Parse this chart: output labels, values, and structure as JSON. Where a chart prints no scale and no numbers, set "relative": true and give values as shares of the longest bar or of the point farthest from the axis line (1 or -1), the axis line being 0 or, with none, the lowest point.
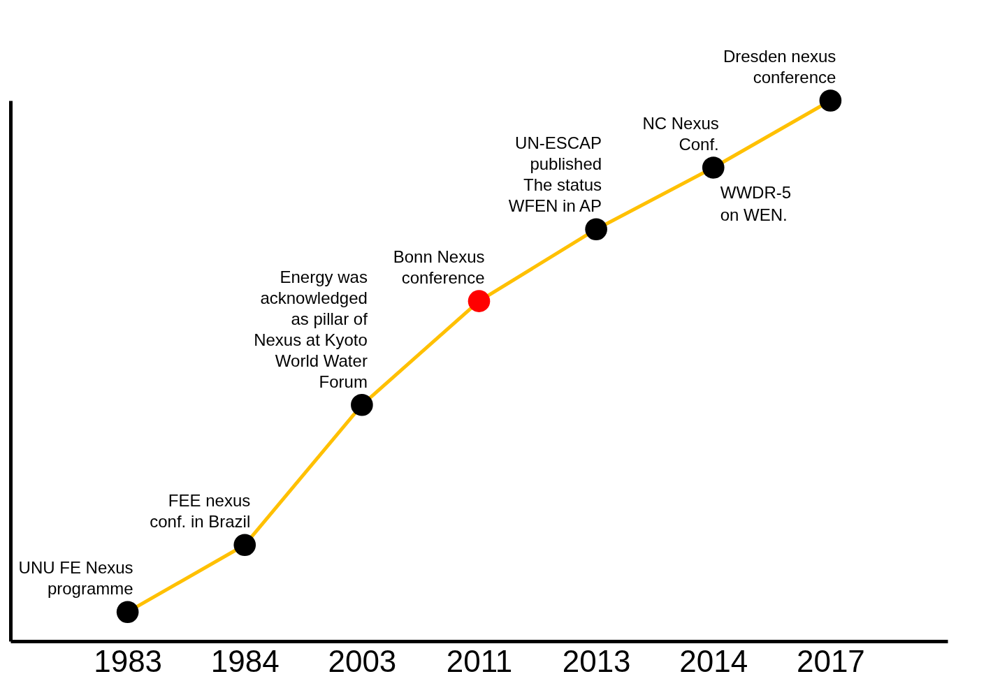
{
  "chart_data": {
    "type": "line",
    "relative": true,
    "categories": [
      "1983",
      "1984",
      "2003",
      "2011",
      "2013",
      "2014",
      "2017"
    ],
    "series": [
      {
        "color": "#ffc000",
        "values": [
          0.054,
          0.178,
          0.437,
          0.629,
          0.762,
          0.876,
          1.0
        ],
        "colors": [
          "#000000",
          "#000000",
          "#000000",
          "#ff0000",
          "#000000",
          "#000000",
          "#000000"
        ]
      }
    ],
    "marker": "circle",
    "line_style": "solid",
    "grid": false,
    "annotations": [
      {
        "text": "UNU FE Nexus\nprogramme",
        "x": "1983",
        "y": 0.054
      },
      {
        "text": "FEE nexus\nconf. in Brazil",
        "x": "1984",
        "y": 0.178
      },
      {
        "text": "Energy was\nacknowledged\nas pillar of\nNexus at Kyoto\nWorld Water\nForum",
        "x": "2003",
        "y": 0.437
      },
      {
        "text": "Bonn Nexus\nconference",
        "x": "2011",
        "y": 0.629
      },
      {
        "text": "UN-ESCAP\npublished\nThe status\nWFEN in AP",
        "x": "2013",
        "y": 0.762
      },
      {
        "text": "NC Nexus\nConf.",
        "x": "2014",
        "y": 0.876
      },
      {
        "text": "WWDR-5\non WEN.",
        "x": "2014",
        "y": 0.876
      },
      {
        "text": "Dresden nexus\nconference",
        "x": "2017",
        "y": 1.0
      }
    ]
  }
}
